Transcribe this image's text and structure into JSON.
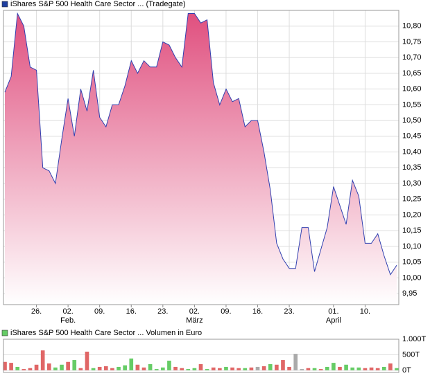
{
  "chart_data": [
    {
      "type": "area",
      "legend": "iShares S&P 500 Health Care Sector ... (Tradegate)",
      "legend_color": "#1f3f9f",
      "color": "#3040b0",
      "fill_top": "#e0507f",
      "fill_bottom": "#ffffff",
      "values": [
        10.59,
        10.64,
        10.84,
        10.8,
        10.67,
        10.66,
        10.35,
        10.34,
        10.3,
        10.44,
        10.57,
        10.45,
        10.6,
        10.53,
        10.66,
        10.51,
        10.48,
        10.55,
        10.55,
        10.61,
        10.69,
        10.65,
        10.69,
        10.67,
        10.67,
        10.75,
        10.74,
        10.7,
        10.67,
        10.84,
        10.84,
        10.81,
        10.82,
        10.62,
        10.55,
        10.6,
        10.56,
        10.57,
        10.48,
        10.5,
        10.5,
        10.4,
        10.28,
        10.11,
        10.06,
        10.03,
        10.03,
        10.16,
        10.16,
        10.02,
        10.09,
        10.16,
        10.29,
        10.23,
        10.17,
        10.31,
        10.26,
        10.11,
        10.11,
        10.14,
        10.07,
        10.01,
        10.04
      ],
      "xlim": [
        0,
        62
      ],
      "xticks": [
        {
          "value": 5,
          "label": "26."
        },
        {
          "value": 10,
          "label": "02."
        },
        {
          "value": 15,
          "label": "09."
        },
        {
          "value": 20,
          "label": "16."
        },
        {
          "value": 25,
          "label": "23."
        },
        {
          "value": 30,
          "label": "02."
        },
        {
          "value": 35,
          "label": "09."
        },
        {
          "value": 40,
          "label": "16."
        },
        {
          "value": 45,
          "label": "23."
        },
        {
          "value": 52,
          "label": "01."
        },
        {
          "value": 57,
          "label": "10."
        }
      ],
      "xtick_months": [
        {
          "value": 10,
          "label": "Feb."
        },
        {
          "value": 30,
          "label": "März"
        },
        {
          "value": 52,
          "label": "April"
        }
      ],
      "ylim": [
        9.915,
        10.85
      ],
      "yticks": [
        {
          "value": 9.95,
          "label": "9,95"
        },
        {
          "value": 10.0,
          "label": "10,00"
        },
        {
          "value": 10.05,
          "label": "10,05"
        },
        {
          "value": 10.1,
          "label": "10,10"
        },
        {
          "value": 10.15,
          "label": "10,15"
        },
        {
          "value": 10.2,
          "label": "10,20"
        },
        {
          "value": 10.25,
          "label": "10,25"
        },
        {
          "value": 10.3,
          "label": "10,30"
        },
        {
          "value": 10.35,
          "label": "10,35"
        },
        {
          "value": 10.4,
          "label": "10,40"
        },
        {
          "value": 10.45,
          "label": "10,45"
        },
        {
          "value": 10.5,
          "label": "10,50"
        },
        {
          "value": 10.55,
          "label": "10,55"
        },
        {
          "value": 10.6,
          "label": "10,60"
        },
        {
          "value": 10.65,
          "label": "10,65"
        },
        {
          "value": 10.7,
          "label": "10,70"
        },
        {
          "value": 10.75,
          "label": "10,75"
        },
        {
          "value": 10.8,
          "label": "10,80"
        }
      ],
      "grid": true
    },
    {
      "type": "bar",
      "legend": "iShares S&P 500 Health Care Sector ... Volumen in Euro",
      "legend_color": "#66cc66",
      "values": [
        270,
        240,
        110,
        40,
        70,
        180,
        640,
        220,
        90,
        180,
        270,
        330,
        70,
        600,
        70,
        110,
        130,
        70,
        110,
        160,
        380,
        180,
        90,
        200,
        40,
        90,
        310,
        110,
        70,
        40,
        70,
        200,
        40,
        90,
        70,
        110,
        90,
        70,
        70,
        90,
        110,
        130,
        200,
        180,
        330,
        110,
        530,
        40,
        70,
        70,
        40,
        110,
        240,
        110,
        180,
        90,
        90,
        70,
        90,
        70,
        110,
        220,
        70
      ],
      "colors": [
        "#e06666",
        "#e06666",
        "#66cc66",
        "#e06666",
        "#e06666",
        "#e06666",
        "#e06666",
        "#e06666",
        "#66cc66",
        "#66cc66",
        "#e06666",
        "#66cc66",
        "#e06666",
        "#e06666",
        "#66cc66",
        "#e06666",
        "#e06666",
        "#e06666",
        "#66cc66",
        "#66cc66",
        "#66cc66",
        "#e06666",
        "#e06666",
        "#66cc66",
        "#66cc66",
        "#66cc66",
        "#66cc66",
        "#e06666",
        "#e06666",
        "#66cc66",
        "#66cc66",
        "#e06666",
        "#66cc66",
        "#e06666",
        "#e06666",
        "#66cc66",
        "#e06666",
        "#e06666",
        "#66cc66",
        "#e06666",
        "#aaaaaa",
        "#e06666",
        "#66cc66",
        "#e06666",
        "#e06666",
        "#e06666",
        "#aaaaaa",
        "#aaaaaa",
        "#e06666",
        "#66cc66",
        "#e06666",
        "#66cc66",
        "#66cc66",
        "#e06666",
        "#66cc66",
        "#66cc66",
        "#66cc66",
        "#e06666",
        "#e06666",
        "#e06666",
        "#66cc66",
        "#e06666",
        "#66cc66"
      ],
      "xlim": [
        0,
        62
      ],
      "ylim": [
        -70,
        1000
      ],
      "yticks": [
        {
          "value": 0,
          "label": "0T"
        },
        {
          "value": 500,
          "label": "500T"
        },
        {
          "value": 1000,
          "label": "1.000T"
        }
      ],
      "grid": true
    }
  ]
}
